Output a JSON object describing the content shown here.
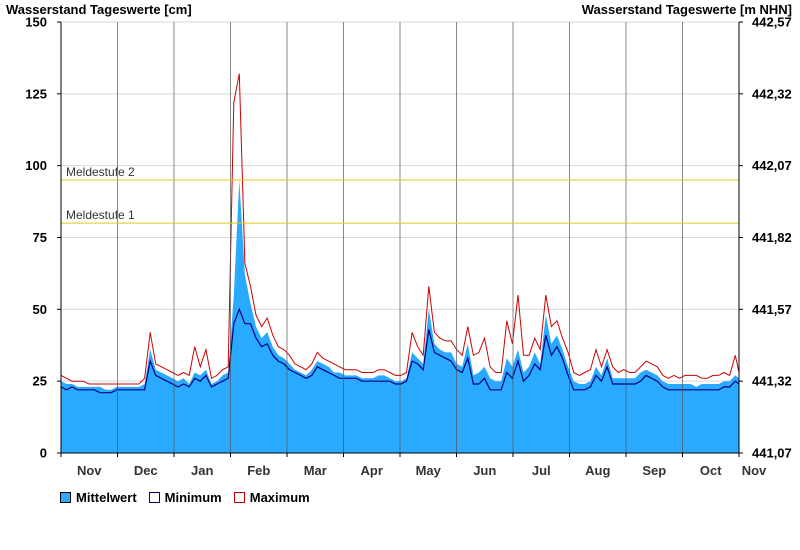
{
  "chart_data": {
    "type": "area",
    "title_left": "Wasserstand Tageswerte [cm]",
    "title_right": "Wasserstand Tageswerte [m NHN]",
    "ylim": [
      0,
      150
    ],
    "y_ticks": [
      "0",
      "25",
      "50",
      "75",
      "100",
      "125",
      "150"
    ],
    "y2_ticks": [
      "441,07",
      "441,32",
      "441,57",
      "441,82",
      "442,07",
      "442,32",
      "442,57"
    ],
    "x_ticks": [
      "Nov",
      "Dec",
      "Jan",
      "Feb",
      "Mar",
      "Apr",
      "May",
      "Jun",
      "Jul",
      "Aug",
      "Sep",
      "Oct",
      "Nov"
    ],
    "x_day_range": [
      0,
      365
    ],
    "thresholds": [
      {
        "label": "Meldestufe 2",
        "value": 95
      },
      {
        "label": "Meldestufe 1",
        "value": 80
      }
    ],
    "grid": true,
    "legend_position": "bottom-left",
    "series": [
      {
        "name": "Mittelwert",
        "color": "#29a9ff",
        "x": [
          0,
          3,
          6,
          9,
          12,
          15,
          18,
          21,
          24,
          27,
          30,
          33,
          36,
          39,
          42,
          45,
          48,
          51,
          54,
          57,
          60,
          63,
          66,
          69,
          72,
          75,
          78,
          81,
          84,
          87,
          90,
          93,
          96,
          99,
          102,
          105,
          108,
          111,
          114,
          117,
          120,
          123,
          126,
          129,
          132,
          135,
          138,
          141,
          144,
          147,
          150,
          153,
          156,
          159,
          162,
          165,
          168,
          171,
          174,
          177,
          180,
          183,
          186,
          189,
          192,
          195,
          198,
          201,
          204,
          207,
          210,
          213,
          216,
          219,
          222,
          225,
          228,
          231,
          234,
          237,
          240,
          243,
          246,
          249,
          252,
          255,
          258,
          261,
          264,
          267,
          270,
          273,
          276,
          279,
          282,
          285,
          288,
          291,
          294,
          297,
          300,
          303,
          306,
          309,
          312,
          315,
          318,
          321,
          324,
          327,
          330,
          333,
          336,
          339,
          342,
          345,
          348,
          351,
          354,
          357,
          360,
          363,
          365
        ],
        "values": [
          25,
          24,
          24,
          23,
          23,
          23,
          23,
          23,
          22,
          22,
          23,
          23,
          23,
          23,
          23,
          24,
          36,
          29,
          28,
          27,
          26,
          25,
          26,
          24,
          28,
          27,
          29,
          24,
          25,
          27,
          28,
          55,
          95,
          62,
          52,
          44,
          40,
          42,
          37,
          34,
          33,
          31,
          29,
          28,
          27,
          29,
          32,
          31,
          30,
          28,
          28,
          27,
          27,
          27,
          26,
          26,
          26,
          27,
          27,
          26,
          25,
          25,
          26,
          35,
          33,
          31,
          50,
          38,
          36,
          35,
          35,
          31,
          30,
          38,
          27,
          28,
          30,
          26,
          25,
          25,
          33,
          30,
          36,
          28,
          30,
          35,
          31,
          48,
          38,
          41,
          36,
          30,
          25,
          24,
          24,
          25,
          30,
          27,
          33,
          26,
          26,
          26,
          26,
          26,
          28,
          29,
          28,
          27,
          25,
          24,
          24,
          24,
          24,
          24,
          23,
          24,
          24,
          24,
          24,
          25,
          25,
          27,
          26
        ]
      },
      {
        "name": "Minimum",
        "color": "#000080",
        "x": [
          0,
          3,
          6,
          9,
          12,
          15,
          18,
          21,
          24,
          27,
          30,
          33,
          36,
          39,
          42,
          45,
          48,
          51,
          54,
          57,
          60,
          63,
          66,
          69,
          72,
          75,
          78,
          81,
          84,
          87,
          90,
          93,
          96,
          99,
          102,
          105,
          108,
          111,
          114,
          117,
          120,
          123,
          126,
          129,
          132,
          135,
          138,
          141,
          144,
          147,
          150,
          153,
          156,
          159,
          162,
          165,
          168,
          171,
          174,
          177,
          180,
          183,
          186,
          189,
          192,
          195,
          198,
          201,
          204,
          207,
          210,
          213,
          216,
          219,
          222,
          225,
          228,
          231,
          234,
          237,
          240,
          243,
          246,
          249,
          252,
          255,
          258,
          261,
          264,
          267,
          270,
          273,
          276,
          279,
          282,
          285,
          288,
          291,
          294,
          297,
          300,
          303,
          306,
          309,
          312,
          315,
          318,
          321,
          324,
          327,
          330,
          333,
          336,
          339,
          342,
          345,
          348,
          351,
          354,
          357,
          360,
          363,
          365
        ],
        "values": [
          23,
          22,
          23,
          22,
          22,
          22,
          22,
          21,
          21,
          21,
          22,
          22,
          22,
          22,
          22,
          22,
          32,
          27,
          26,
          25,
          24,
          23,
          24,
          23,
          26,
          25,
          27,
          23,
          24,
          25,
          26,
          45,
          50,
          45,
          45,
          40,
          37,
          38,
          34,
          32,
          31,
          29,
          28,
          27,
          26,
          27,
          30,
          29,
          28,
          27,
          26,
          26,
          26,
          26,
          25,
          25,
          25,
          25,
          25,
          25,
          24,
          24,
          25,
          32,
          31,
          29,
          43,
          35,
          34,
          33,
          32,
          29,
          28,
          33,
          24,
          24,
          26,
          22,
          22,
          22,
          28,
          26,
          32,
          25,
          27,
          31,
          29,
          41,
          34,
          37,
          33,
          27,
          22,
          22,
          22,
          23,
          27,
          25,
          30,
          24,
          24,
          24,
          24,
          24,
          25,
          27,
          26,
          25,
          23,
          22,
          22,
          22,
          22,
          22,
          22,
          22,
          22,
          22,
          22,
          23,
          23,
          25,
          24
        ]
      },
      {
        "name": "Maximum",
        "color": "#cc0000",
        "x": [
          0,
          3,
          6,
          9,
          12,
          15,
          18,
          21,
          24,
          27,
          30,
          33,
          36,
          39,
          42,
          45,
          48,
          51,
          54,
          57,
          60,
          63,
          66,
          69,
          72,
          75,
          78,
          81,
          84,
          87,
          90,
          93,
          96,
          99,
          102,
          105,
          108,
          111,
          114,
          117,
          120,
          123,
          126,
          129,
          132,
          135,
          138,
          141,
          144,
          147,
          150,
          153,
          156,
          159,
          162,
          165,
          168,
          171,
          174,
          177,
          180,
          183,
          186,
          189,
          192,
          195,
          198,
          201,
          204,
          207,
          210,
          213,
          216,
          219,
          222,
          225,
          228,
          231,
          234,
          237,
          240,
          243,
          246,
          249,
          252,
          255,
          258,
          261,
          264,
          267,
          270,
          273,
          276,
          279,
          282,
          285,
          288,
          291,
          294,
          297,
          300,
          303,
          306,
          309,
          312,
          315,
          318,
          321,
          324,
          327,
          330,
          333,
          336,
          339,
          342,
          345,
          348,
          351,
          354,
          357,
          360,
          363,
          365
        ],
        "values": [
          27,
          26,
          25,
          25,
          25,
          24,
          24,
          24,
          24,
          24,
          24,
          24,
          24,
          24,
          24,
          26,
          42,
          31,
          30,
          29,
          28,
          27,
          28,
          27,
          37,
          30,
          36,
          26,
          27,
          29,
          30,
          122,
          132,
          66,
          58,
          48,
          44,
          47,
          41,
          37,
          36,
          34,
          31,
          30,
          29,
          31,
          35,
          33,
          32,
          31,
          30,
          29,
          29,
          29,
          28,
          28,
          28,
          29,
          29,
          28,
          27,
          27,
          28,
          42,
          37,
          34,
          58,
          42,
          40,
          39,
          39,
          36,
          34,
          44,
          34,
          35,
          40,
          30,
          28,
          28,
          46,
          38,
          55,
          34,
          34,
          40,
          36,
          55,
          44,
          46,
          40,
          35,
          28,
          27,
          28,
          29,
          36,
          30,
          36,
          30,
          28,
          29,
          28,
          28,
          30,
          32,
          31,
          30,
          27,
          26,
          27,
          26,
          27,
          27,
          27,
          26,
          26,
          27,
          27,
          28,
          27,
          34,
          28
        ]
      }
    ]
  }
}
